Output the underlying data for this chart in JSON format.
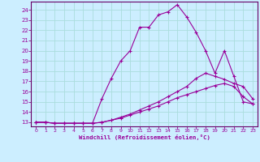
{
  "xlabel": "Windchill (Refroidissement éolien,°C)",
  "background_color": "#cceeff",
  "grid_color": "#aadddd",
  "line_color": "#990099",
  "spine_color": "#660066",
  "xlim_min": -0.5,
  "xlim_max": 23.5,
  "ylim_min": 12.6,
  "ylim_max": 24.8,
  "yticks": [
    13,
    14,
    15,
    16,
    17,
    18,
    19,
    20,
    21,
    22,
    23,
    24
  ],
  "xticks": [
    0,
    1,
    2,
    3,
    4,
    5,
    6,
    7,
    8,
    9,
    10,
    11,
    12,
    13,
    14,
    15,
    16,
    17,
    18,
    19,
    20,
    21,
    22,
    23
  ],
  "line1_x": [
    0,
    1,
    2,
    3,
    4,
    5,
    6,
    7,
    8,
    9,
    10,
    11,
    12,
    13,
    14,
    15,
    16,
    17,
    18,
    19,
    20,
    21,
    22,
    23
  ],
  "line1_y": [
    13.0,
    13.0,
    12.9,
    12.9,
    12.9,
    12.9,
    12.9,
    15.3,
    17.3,
    19.0,
    20.0,
    22.3,
    22.3,
    23.5,
    23.8,
    24.5,
    23.3,
    21.8,
    20.0,
    17.8,
    20.0,
    17.5,
    15.0,
    14.8
  ],
  "line2_x": [
    0,
    1,
    2,
    3,
    4,
    5,
    6,
    7,
    8,
    9,
    10,
    11,
    12,
    13,
    14,
    15,
    16,
    17,
    18,
    19,
    20,
    21,
    22,
    23
  ],
  "line2_y": [
    13.0,
    13.0,
    12.9,
    12.9,
    12.9,
    12.9,
    12.9,
    13.0,
    13.2,
    13.5,
    13.8,
    14.2,
    14.6,
    15.0,
    15.5,
    16.0,
    16.5,
    17.3,
    17.8,
    17.5,
    17.2,
    16.8,
    16.5,
    15.3
  ],
  "line3_x": [
    0,
    1,
    2,
    3,
    4,
    5,
    6,
    7,
    8,
    9,
    10,
    11,
    12,
    13,
    14,
    15,
    16,
    17,
    18,
    19,
    20,
    21,
    22,
    23
  ],
  "line3_y": [
    13.0,
    13.0,
    12.9,
    12.9,
    12.9,
    12.9,
    12.9,
    13.0,
    13.2,
    13.4,
    13.7,
    14.0,
    14.3,
    14.6,
    15.0,
    15.4,
    15.7,
    16.0,
    16.3,
    16.6,
    16.8,
    16.5,
    15.5,
    14.8
  ]
}
